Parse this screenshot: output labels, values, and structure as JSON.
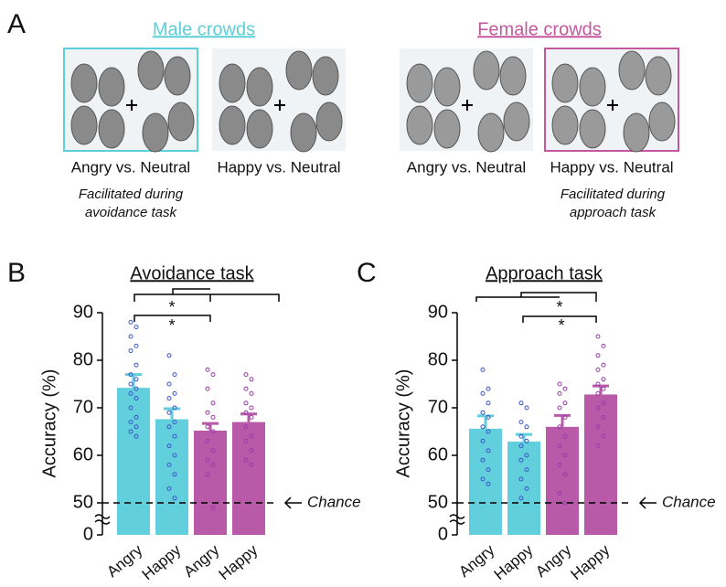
{
  "panel_a": {
    "label": "A",
    "groups": [
      {
        "title": "Male crowds",
        "color": "#5ccfd8",
        "conditions": [
          "Angry vs. Neutral",
          "Happy vs. Neutral"
        ],
        "note": [
          "Facilitated during",
          "avoidance task"
        ]
      },
      {
        "title": "Female crowds",
        "color": "#c3589f",
        "conditions": [
          "Angry vs. Neutral",
          "Happy vs. Neutral"
        ],
        "note": [
          "Facilitated during",
          "approach task"
        ]
      }
    ]
  },
  "chart_data": [
    {
      "type": "bar",
      "panel": "B",
      "title": "Avoidance task",
      "ylabel": "Accuracy (%)",
      "categories": [
        "Angry",
        "Happy",
        "Angry",
        "Happy"
      ],
      "values": [
        74.2,
        67.6,
        65.2,
        67.0
      ],
      "errors": [
        2.8,
        2.2,
        1.5,
        1.7
      ],
      "colors": [
        "#62cfdc",
        "#62cfdc",
        "#b95aa8",
        "#b95aa8"
      ],
      "point_colors": [
        "#3a56c8",
        "#3a56c8",
        "#9a3aa8",
        "#9a3aa8"
      ],
      "points": [
        [
          88,
          87,
          85,
          83,
          82,
          79,
          77,
          76,
          75,
          74,
          73,
          72,
          70,
          68,
          67,
          66,
          65,
          64
        ],
        [
          81,
          77,
          75,
          73,
          72,
          70,
          69,
          67,
          66,
          64,
          62,
          60,
          58,
          56,
          53,
          51
        ],
        [
          78,
          77,
          74,
          71,
          69,
          68,
          66,
          65,
          63,
          61,
          59,
          58,
          56,
          49
        ],
        [
          77,
          76,
          74,
          73,
          71,
          70,
          69,
          68,
          66,
          64,
          63,
          61,
          59,
          58
        ]
      ],
      "ylim": [
        0,
        90
      ],
      "yticks": [
        0,
        50,
        60,
        70,
        80,
        90
      ],
      "axis_break": 45,
      "chance": 50,
      "chance_label": "Chance",
      "annotations": [
        "*",
        "*"
      ]
    },
    {
      "type": "bar",
      "panel": "C",
      "title": "Approach task",
      "ylabel": "Accuracy (%)",
      "categories": [
        "Angry",
        "Happy",
        "Angry",
        "Happy"
      ],
      "values": [
        65.6,
        62.9,
        66.0,
        72.8
      ],
      "errors": [
        2.7,
        1.5,
        2.4,
        1.8
      ],
      "colors": [
        "#62cfdc",
        "#62cfdc",
        "#b95aa8",
        "#b95aa8"
      ],
      "point_colors": [
        "#3a56c8",
        "#3a56c8",
        "#9a3aa8",
        "#9a3aa8"
      ],
      "points": [
        [
          78,
          74,
          73,
          71,
          69,
          68,
          66,
          65,
          63,
          61,
          59,
          57,
          55,
          54
        ],
        [
          71,
          70,
          67,
          66,
          64,
          63,
          62,
          60,
          59,
          57,
          55,
          53,
          51
        ],
        [
          75,
          74,
          73,
          71,
          70,
          68,
          66,
          64,
          62,
          60,
          58,
          56,
          52,
          50
        ],
        [
          85,
          83,
          81,
          79,
          78,
          76,
          75,
          74,
          73,
          71,
          70,
          68,
          66,
          64,
          62
        ]
      ],
      "ylim": [
        0,
        90
      ],
      "yticks": [
        0,
        50,
        60,
        70,
        80,
        90
      ],
      "axis_break": 45,
      "chance": 50,
      "chance_label": "Chance",
      "annotations": [
        "*",
        "*"
      ]
    }
  ]
}
